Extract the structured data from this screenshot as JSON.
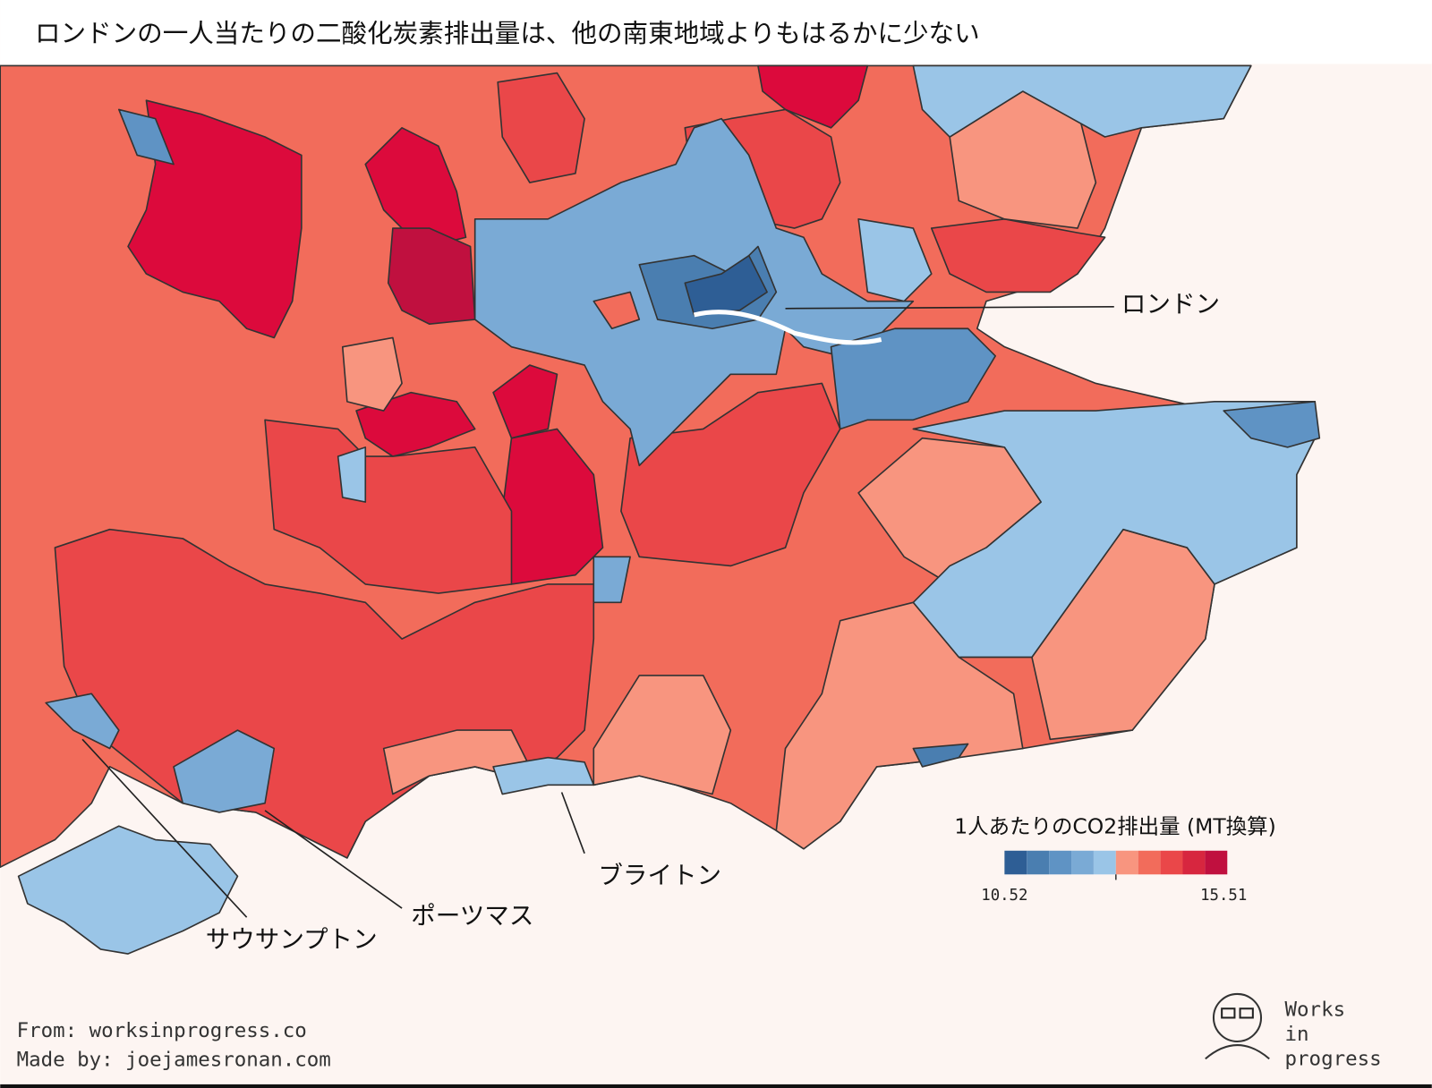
{
  "title": "ロンドンの一人当たりの二酸化炭素排出量は、他の南東地域よりもはるかに少ない",
  "labels": [
    "ロンドン",
    "ブライトン",
    "ポーツマス",
    "サウサンプトン"
  ],
  "legend": {
    "title": "1人あたりのCO2排出量 (MT換算)",
    "min": 10.52,
    "max": 15.51,
    "colors": [
      "#2e5e95",
      "#4a7eb0",
      "#5f93c4",
      "#7aaad5",
      "#9ac5e7",
      "#f8957f",
      "#f26c5b",
      "#ea4749",
      "#d7263f",
      "#c0103f"
    ]
  },
  "footer": {
    "source": "From: worksinprogress.co",
    "credit": "Made by: joejamesronan.com"
  },
  "logo": [
    "Works",
    "in",
    "progress"
  ]
}
